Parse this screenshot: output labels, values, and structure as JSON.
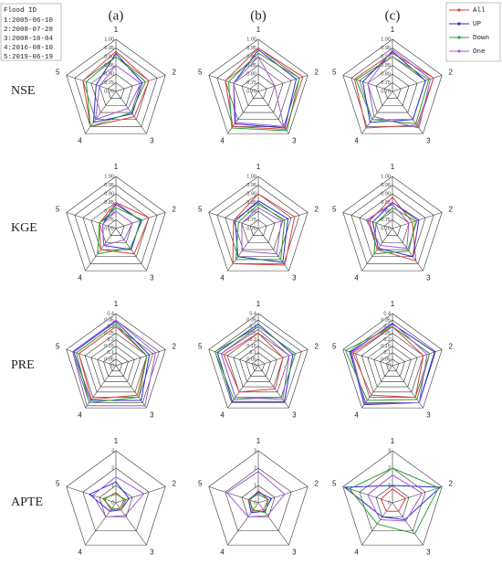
{
  "column_labels": [
    "(a)",
    "(b)",
    "(c)"
  ],
  "row_labels": [
    "NSE",
    "KGE",
    "PRE",
    "APTE"
  ],
  "flood_id": {
    "title": "Flood ID",
    "entries": [
      "1:2005-06-10",
      "2:2008-07-28",
      "3:2008-10-04",
      "4:2016-08-10",
      "5:2019-06-19"
    ]
  },
  "legend": [
    {
      "name": "All",
      "color": "#e0403a"
    },
    {
      "name": "UP",
      "color": "#2b2bd6"
    },
    {
      "name": "Down",
      "color": "#2ca02c"
    },
    {
      "name": "One",
      "color": "#a05cd6"
    }
  ],
  "chart_data": [
    {
      "type": "radar",
      "categories": [
        "1",
        "2",
        "3",
        "4",
        "5"
      ],
      "rlim": [
        0.7,
        1.0
      ],
      "rticks": [
        {
          "value": 0.7,
          "label": "0.70"
        },
        0.75,
        {
          "value": 0.8,
          "label": "0.80"
        },
        0.85,
        {
          "value": 0.9,
          "label": "0.90"
        },
        0.95,
        {
          "value": 1,
          "label": "1.00"
        }
      ],
      "series": [
        {
          "values": [
            0.93,
            0.9,
            0.88,
            0.95,
            0.9
          ]
        },
        {
          "values": [
            0.92,
            0.86,
            0.86,
            0.92,
            0.82
          ]
        },
        {
          "values": [
            0.9,
            0.88,
            0.85,
            0.95,
            0.88
          ]
        },
        {
          "values": [
            0.85,
            0.85,
            0.82,
            0.9,
            0.8
          ]
        }
      ]
    },
    {
      "type": "radar",
      "categories": [
        "1",
        "2",
        "3",
        "4",
        "5"
      ],
      "rlim": [
        0.7,
        1.0
      ],
      "rticks": [
        {
          "value": 0.7,
          "label": "0.70"
        },
        0.75,
        {
          "value": 0.8,
          "label": "0.80"
        },
        0.85,
        {
          "value": 0.9,
          "label": "0.90"
        },
        0.95,
        {
          "value": 1,
          "label": "1.00"
        }
      ],
      "series": [
        {
          "values": [
            0.95,
            0.97,
            0.97,
            0.95,
            0.9
          ]
        },
        {
          "values": [
            0.94,
            0.93,
            0.96,
            0.93,
            0.85
          ]
        },
        {
          "values": [
            0.92,
            0.95,
            0.98,
            0.96,
            0.88
          ]
        },
        {
          "values": [
            0.9,
            0.8,
            0.95,
            0.92,
            0.85
          ]
        }
      ]
    },
    {
      "type": "radar",
      "categories": [
        "1",
        "2",
        "3",
        "4",
        "5"
      ],
      "rlim": [
        0.7,
        1.0
      ],
      "rticks": [
        {
          "value": 0.7,
          "label": "0.70"
        },
        0.75,
        {
          "value": 0.8,
          "label": "0.80"
        },
        0.85,
        {
          "value": 0.9,
          "label": "0.90"
        },
        0.95,
        {
          "value": 1,
          "label": "1.00"
        }
      ],
      "series": [
        {
          "values": [
            0.92,
            0.95,
            0.94,
            0.96,
            0.93
          ]
        },
        {
          "values": [
            0.93,
            0.9,
            0.9,
            0.92,
            0.88
          ]
        },
        {
          "values": [
            0.9,
            0.92,
            0.93,
            0.9,
            0.92
          ]
        },
        {
          "values": [
            0.94,
            0.93,
            0.96,
            0.88,
            0.85
          ]
        }
      ]
    },
    {
      "type": "radar",
      "categories": [
        "1",
        "2",
        "3",
        "4",
        "5"
      ],
      "rlim": [
        0.7,
        1.0
      ],
      "rticks": [
        {
          "value": 0.7,
          "label": "0.70"
        },
        0.75,
        {
          "value": 0.8,
          "label": "0.80"
        },
        0.85,
        {
          "value": 0.9,
          "label": "0.90"
        },
        0.95,
        {
          "value": 1,
          "label": "1.00"
        }
      ],
      "series": [
        {
          "values": [
            0.85,
            0.9,
            0.88,
            0.85,
            0.8
          ]
        },
        {
          "values": [
            0.84,
            0.85,
            0.85,
            0.82,
            0.78
          ]
        },
        {
          "values": [
            0.82,
            0.86,
            0.84,
            0.88,
            0.8
          ]
        },
        {
          "values": [
            0.8,
            0.8,
            0.78,
            0.82,
            0.78
          ]
        }
      ]
    },
    {
      "type": "radar",
      "categories": [
        "1",
        "2",
        "3",
        "4",
        "5"
      ],
      "rlim": [
        0.7,
        1.0
      ],
      "rticks": [
        {
          "value": 0.7,
          "label": "0.70"
        },
        0.75,
        {
          "value": 0.8,
          "label": "0.80"
        },
        0.85,
        {
          "value": 0.9,
          "label": "0.90"
        },
        0.95,
        {
          "value": 1,
          "label": "1.00"
        }
      ],
      "series": [
        {
          "values": [
            0.9,
            0.92,
            0.96,
            0.95,
            0.85
          ]
        },
        {
          "values": [
            0.86,
            0.88,
            0.94,
            0.9,
            0.84
          ]
        },
        {
          "values": [
            0.84,
            0.86,
            0.92,
            0.92,
            0.82
          ]
        },
        {
          "values": [
            0.82,
            0.84,
            0.88,
            0.86,
            0.8
          ]
        }
      ]
    },
    {
      "type": "radar",
      "categories": [
        "1",
        "2",
        "3",
        "4",
        "5"
      ],
      "rlim": [
        0.7,
        1.0
      ],
      "rticks": [
        {
          "value": 0.7,
          "label": "0.70"
        },
        0.75,
        {
          "value": 0.8,
          "label": "0.80"
        },
        0.85,
        {
          "value": 0.9,
          "label": "0.90"
        },
        0.95,
        {
          "value": 1,
          "label": "1.00"
        }
      ],
      "series": [
        {
          "values": [
            0.88,
            0.82,
            0.93,
            0.85,
            0.84
          ]
        },
        {
          "values": [
            0.85,
            0.86,
            0.9,
            0.84,
            0.82
          ]
        },
        {
          "values": [
            0.82,
            0.84,
            0.86,
            0.88,
            0.8
          ]
        },
        {
          "values": [
            0.84,
            0.8,
            0.84,
            0.82,
            0.86
          ]
        }
      ]
    },
    {
      "type": "radar",
      "categories": [
        "1",
        "2",
        "3",
        "4",
        "5"
      ],
      "rlim": [
        0,
        0.4
      ],
      "rticks": [
        0,
        0.05,
        0.1,
        0.15,
        0.2,
        0.25,
        0.3,
        0.35,
        0.4
      ],
      "series": [
        {
          "values": [
            0.3,
            0.25,
            0.28,
            0.32,
            0.3
          ]
        },
        {
          "values": [
            0.34,
            0.27,
            0.33,
            0.33,
            0.34
          ]
        },
        {
          "values": [
            0.32,
            0.25,
            0.3,
            0.35,
            0.32
          ]
        },
        {
          "values": [
            0.35,
            0.32,
            0.38,
            0.38,
            0.35
          ]
        }
      ]
    },
    {
      "type": "radar",
      "categories": [
        "1",
        "2",
        "3",
        "4",
        "5"
      ],
      "rlim": [
        0,
        0.4
      ],
      "rticks": [
        0,
        0.05,
        0.1,
        0.15,
        0.2,
        0.25,
        0.3,
        0.35,
        0.4
      ],
      "series": [
        {
          "values": [
            0.25,
            0.2,
            0.22,
            0.25,
            0.28
          ]
        },
        {
          "values": [
            0.32,
            0.28,
            0.34,
            0.34,
            0.33
          ]
        },
        {
          "values": [
            0.3,
            0.3,
            0.3,
            0.32,
            0.35
          ]
        },
        {
          "values": [
            0.28,
            0.25,
            0.32,
            0.3,
            0.3
          ]
        }
      ]
    },
    {
      "type": "radar",
      "categories": [
        "1",
        "2",
        "3",
        "4",
        "5"
      ],
      "rlim": [
        0,
        0.4
      ],
      "rticks": [
        0,
        0.05,
        0.1,
        0.15,
        0.2,
        0.25,
        0.3,
        0.35,
        0.4
      ],
      "series": [
        {
          "values": [
            0.3,
            0.25,
            0.3,
            0.28,
            0.32
          ]
        },
        {
          "values": [
            0.32,
            0.34,
            0.35,
            0.37,
            0.34
          ]
        },
        {
          "values": [
            0.3,
            0.3,
            0.32,
            0.33,
            0.38
          ]
        },
        {
          "values": [
            0.33,
            0.28,
            0.35,
            0.36,
            0.33
          ]
        }
      ]
    },
    {
      "type": "radar",
      "categories": [
        "1",
        "2",
        "3",
        "4",
        "5"
      ],
      "rlim": [
        0,
        3
      ],
      "rticks": [
        0,
        1,
        2,
        3
      ],
      "series": [
        {
          "values": [
            0.6,
            0.5,
            0.4,
            0.5,
            0.7
          ]
        },
        {
          "values": [
            1.2,
            0.8,
            0.5,
            0.6,
            1.6
          ]
        },
        {
          "values": [
            0.5,
            0.6,
            0.5,
            0.4,
            0.8
          ]
        },
        {
          "values": [
            1.5,
            1.7,
            0.9,
            1.0,
            1.4
          ]
        }
      ]
    },
    {
      "type": "radar",
      "categories": [
        "1",
        "2",
        "3",
        "4",
        "5"
      ],
      "rlim": [
        0,
        3
      ],
      "rticks": [
        0,
        1,
        2,
        3
      ],
      "series": [
        {
          "values": [
            0.7,
            0.6,
            0.5,
            0.6,
            0.5
          ]
        },
        {
          "values": [
            0.6,
            0.8,
            0.6,
            0.7,
            0.6
          ]
        },
        {
          "values": [
            0.5,
            0.6,
            0.7,
            0.5,
            0.6
          ]
        },
        {
          "values": [
            1.8,
            1.6,
            0.9,
            1.0,
            1.9
          ]
        }
      ]
    },
    {
      "type": "radar",
      "categories": [
        "1",
        "2",
        "3",
        "4",
        "5"
      ],
      "rlim": [
        0,
        3
      ],
      "rticks": [
        0,
        1,
        2,
        3
      ],
      "series": [
        {
          "values": [
            0.8,
            0.8,
            0.6,
            0.6,
            0.7
          ]
        },
        {
          "values": [
            1.0,
            2.9,
            1.2,
            1.0,
            2.9
          ]
        },
        {
          "values": [
            2.0,
            2.8,
            2.2,
            1.5,
            2.6
          ]
        },
        {
          "values": [
            1.6,
            1.8,
            1.3,
            1.2,
            1.5
          ]
        }
      ]
    }
  ]
}
